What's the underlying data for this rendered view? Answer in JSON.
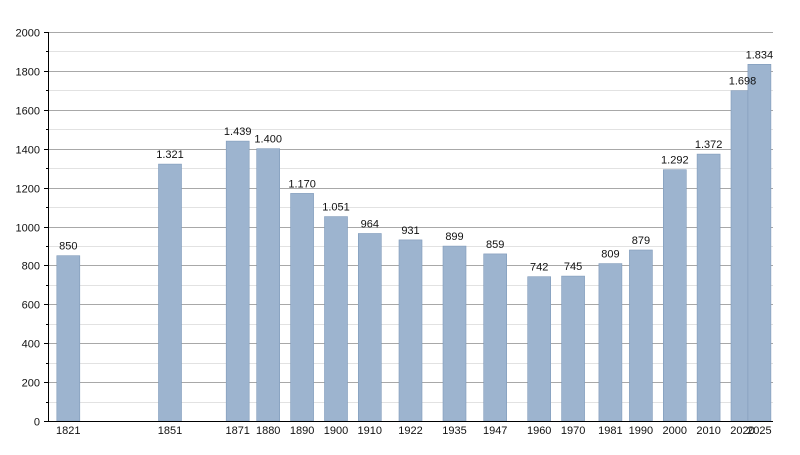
{
  "chart_data": {
    "type": "bar",
    "title": "",
    "xlabel": "",
    "ylabel": "",
    "categories": [
      "1821",
      "1851",
      "1871",
      "1880",
      "1890",
      "1900",
      "1910",
      "1922",
      "1935",
      "1947",
      "1960",
      "1970",
      "1981",
      "1990",
      "2000",
      "2010",
      "2020",
      "2025"
    ],
    "values": [
      850,
      1321,
      1439,
      1400,
      1170,
      1051,
      964,
      931,
      899,
      859,
      742,
      745,
      809,
      879,
      1292,
      1372,
      1698,
      1834
    ],
    "data_labels": [
      "850",
      "1.321",
      "1.439",
      "1.400",
      "1.170",
      "1.051",
      "964",
      "931",
      "899",
      "859",
      "742",
      "745",
      "809",
      "879",
      "1.292",
      "1.372",
      "1.698",
      "1.834"
    ],
    "ylim": [
      0,
      2000
    ],
    "y_ticks": [
      0,
      200,
      400,
      600,
      800,
      1000,
      1200,
      1400,
      1600,
      1800,
      2000
    ],
    "y_tick_labels": [
      "0",
      "200",
      "400",
      "600",
      "800",
      "1000",
      "1200",
      "1400",
      "1600",
      "1800",
      "2000"
    ],
    "grid": true,
    "legend": "none",
    "bar_color": "#9db4cf",
    "bar_edge_color": "#7f9ab9"
  }
}
